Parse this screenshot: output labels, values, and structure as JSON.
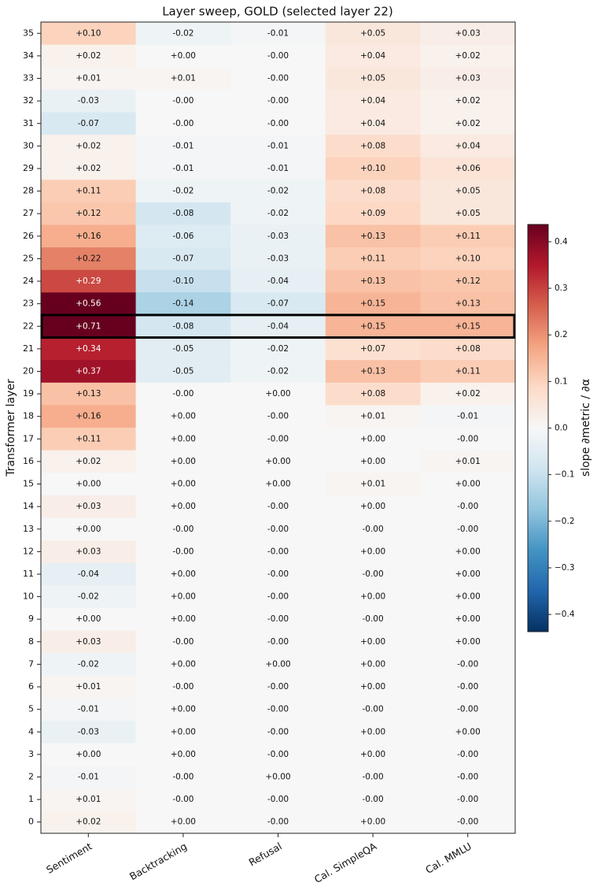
{
  "chart_data": {
    "type": "heatmap",
    "title": "Layer sweep, GOLD (selected layer 22)",
    "y_label": "Transformer layer",
    "colorbar_label": "slope ∂metric / ∂α",
    "colormap": "RdBu_r",
    "selected_layer": 22,
    "categories": [
      "Sentiment",
      "Backtracking",
      "Refusal",
      "Cal. SimpleQA",
      "Cal. MMLU"
    ],
    "y_categories": [
      35,
      34,
      33,
      32,
      31,
      30,
      29,
      28,
      27,
      26,
      25,
      24,
      23,
      22,
      21,
      20,
      19,
      18,
      17,
      16,
      15,
      14,
      13,
      12,
      11,
      10,
      9,
      8,
      7,
      6,
      5,
      4,
      3,
      2,
      1,
      0
    ],
    "values": [
      [
        0.1,
        -0.02,
        -0.01,
        0.05,
        0.03
      ],
      [
        0.02,
        0,
        0,
        0.04,
        0.02
      ],
      [
        0.01,
        0.01,
        0,
        0.05,
        0.03
      ],
      [
        -0.03,
        0,
        0,
        0.04,
        0.02
      ],
      [
        -0.07,
        0,
        0,
        0.04,
        0.02
      ],
      [
        0.02,
        -0.01,
        -0.01,
        0.08,
        0.04
      ],
      [
        0.02,
        -0.01,
        -0.01,
        0.1,
        0.06
      ],
      [
        0.11,
        -0.02,
        -0.02,
        0.08,
        0.05
      ],
      [
        0.12,
        -0.08,
        -0.02,
        0.09,
        0.05
      ],
      [
        0.16,
        -0.06,
        -0.03,
        0.13,
        0.11
      ],
      [
        0.22,
        -0.07,
        -0.03,
        0.11,
        0.1
      ],
      [
        0.29,
        -0.1,
        -0.04,
        0.13,
        0.12
      ],
      [
        0.56,
        -0.14,
        -0.07,
        0.15,
        0.13
      ],
      [
        0.71,
        -0.08,
        -0.04,
        0.15,
        0.15
      ],
      [
        0.34,
        -0.05,
        -0.02,
        0.07,
        0.08
      ],
      [
        0.37,
        -0.05,
        -0.02,
        0.13,
        0.11
      ],
      [
        0.13,
        0,
        0,
        0.08,
        0.02
      ],
      [
        0.16,
        0,
        0,
        0.01,
        -0.01
      ],
      [
        0.11,
        0,
        0,
        0,
        0
      ],
      [
        0.02,
        0,
        0,
        0,
        0.01
      ],
      [
        0,
        0,
        0,
        0.01,
        0
      ],
      [
        0.03,
        0,
        0,
        0,
        0
      ],
      [
        0,
        0,
        0,
        0,
        0
      ],
      [
        0.03,
        0,
        0,
        0,
        0
      ],
      [
        -0.04,
        0,
        0,
        0,
        0
      ],
      [
        -0.02,
        0,
        0,
        0,
        0
      ],
      [
        0,
        0,
        0,
        0,
        0
      ],
      [
        0.03,
        0,
        0,
        0,
        0
      ],
      [
        -0.02,
        0,
        0,
        0,
        0
      ],
      [
        0.01,
        0,
        0,
        0,
        0
      ],
      [
        -0.01,
        0,
        0,
        0,
        0
      ],
      [
        -0.03,
        0,
        0,
        0,
        0
      ],
      [
        0,
        0,
        0,
        0,
        0
      ],
      [
        -0.01,
        0,
        0,
        0,
        0
      ],
      [
        0.01,
        0,
        0,
        0,
        0
      ],
      [
        0.02,
        0,
        0,
        0,
        0
      ]
    ],
    "value_labels": [
      [
        "+0.10",
        "-0.02",
        "-0.01",
        "+0.05",
        "+0.03"
      ],
      [
        "+0.02",
        "+0.00",
        "-0.00",
        "+0.04",
        "+0.02"
      ],
      [
        "+0.01",
        "+0.01",
        "-0.00",
        "+0.05",
        "+0.03"
      ],
      [
        "-0.03",
        "-0.00",
        "-0.00",
        "+0.04",
        "+0.02"
      ],
      [
        "-0.07",
        "-0.00",
        "-0.00",
        "+0.04",
        "+0.02"
      ],
      [
        "+0.02",
        "-0.01",
        "-0.01",
        "+0.08",
        "+0.04"
      ],
      [
        "+0.02",
        "-0.01",
        "-0.01",
        "+0.10",
        "+0.06"
      ],
      [
        "+0.11",
        "-0.02",
        "-0.02",
        "+0.08",
        "+0.05"
      ],
      [
        "+0.12",
        "-0.08",
        "-0.02",
        "+0.09",
        "+0.05"
      ],
      [
        "+0.16",
        "-0.06",
        "-0.03",
        "+0.13",
        "+0.11"
      ],
      [
        "+0.22",
        "-0.07",
        "-0.03",
        "+0.11",
        "+0.10"
      ],
      [
        "+0.29",
        "-0.10",
        "-0.04",
        "+0.13",
        "+0.12"
      ],
      [
        "+0.56",
        "-0.14",
        "-0.07",
        "+0.15",
        "+0.13"
      ],
      [
        "+0.71",
        "-0.08",
        "-0.04",
        "+0.15",
        "+0.15"
      ],
      [
        "+0.34",
        "-0.05",
        "-0.02",
        "+0.07",
        "+0.08"
      ],
      [
        "+0.37",
        "-0.05",
        "-0.02",
        "+0.13",
        "+0.11"
      ],
      [
        "+0.13",
        "-0.00",
        "+0.00",
        "+0.08",
        "+0.02"
      ],
      [
        "+0.16",
        "+0.00",
        "-0.00",
        "+0.01",
        "-0.01"
      ],
      [
        "+0.11",
        "+0.00",
        "-0.00",
        "+0.00",
        "-0.00"
      ],
      [
        "+0.02",
        "+0.00",
        "+0.00",
        "+0.00",
        "+0.01"
      ],
      [
        "+0.00",
        "+0.00",
        "+0.00",
        "+0.01",
        "+0.00"
      ],
      [
        "+0.03",
        "+0.00",
        "-0.00",
        "+0.00",
        "-0.00"
      ],
      [
        "+0.00",
        "-0.00",
        "-0.00",
        "-0.00",
        "-0.00"
      ],
      [
        "+0.03",
        "-0.00",
        "-0.00",
        "+0.00",
        "+0.00"
      ],
      [
        "-0.04",
        "+0.00",
        "-0.00",
        "-0.00",
        "+0.00"
      ],
      [
        "-0.02",
        "+0.00",
        "-0.00",
        "+0.00",
        "+0.00"
      ],
      [
        "+0.00",
        "+0.00",
        "-0.00",
        "-0.00",
        "+0.00"
      ],
      [
        "+0.03",
        "-0.00",
        "-0.00",
        "+0.00",
        "+0.00"
      ],
      [
        "-0.02",
        "+0.00",
        "+0.00",
        "+0.00",
        "-0.00"
      ],
      [
        "+0.01",
        "-0.00",
        "-0.00",
        "+0.00",
        "-0.00"
      ],
      [
        "-0.01",
        "+0.00",
        "-0.00",
        "-0.00",
        "-0.00"
      ],
      [
        "-0.03",
        "+0.00",
        "-0.00",
        "+0.00",
        "+0.00"
      ],
      [
        "+0.00",
        "+0.00",
        "-0.00",
        "+0.00",
        "-0.00"
      ],
      [
        "-0.01",
        "-0.00",
        "+0.00",
        "-0.00",
        "-0.00"
      ],
      [
        "+0.01",
        "-0.00",
        "-0.00",
        "-0.00",
        "-0.00"
      ],
      [
        "+0.02",
        "+0.00",
        "-0.00",
        "+0.00",
        "-0.00"
      ]
    ],
    "clim": [
      -0.437,
      0.437
    ],
    "cticks": [
      {
        "value": -0.4,
        "label": "−0.4"
      },
      {
        "value": -0.3,
        "label": "−0.3"
      },
      {
        "value": -0.2,
        "label": "−0.2"
      },
      {
        "value": -0.1,
        "label": "−0.1"
      },
      {
        "value": 0,
        "label": "0.0"
      },
      0.1,
      0.2,
      0.3,
      0.4
    ]
  }
}
